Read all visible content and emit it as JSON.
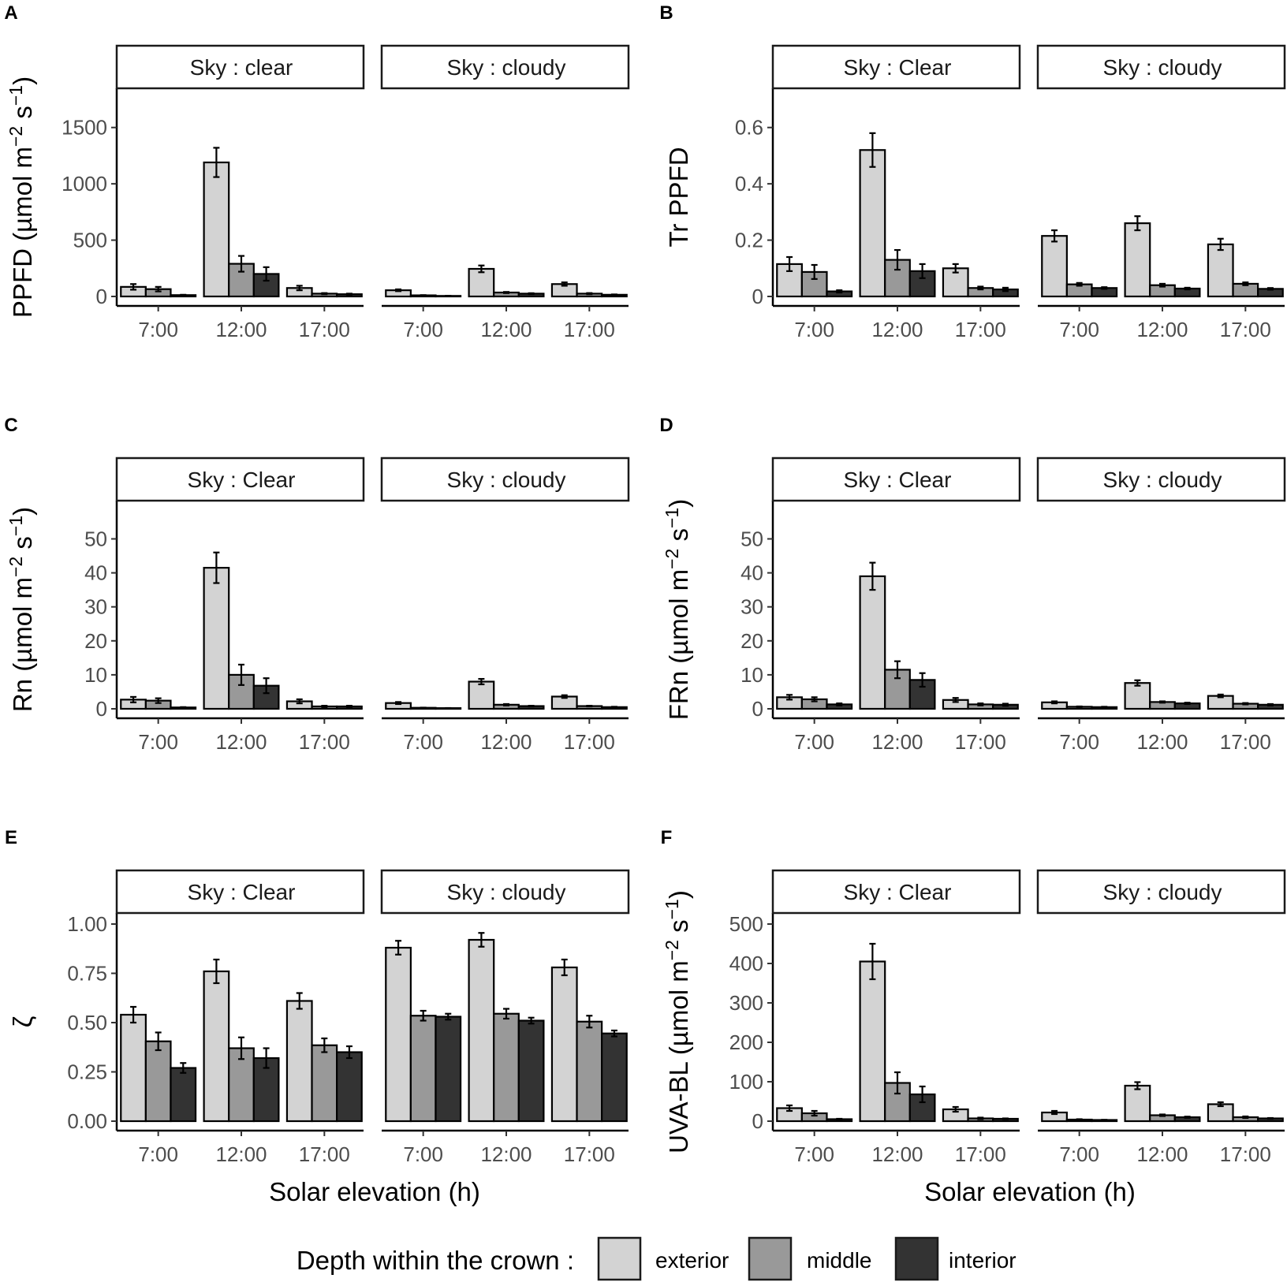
{
  "figure": {
    "x_axis_title": "Solar elevation (h)",
    "legend": {
      "title": "Depth within the crown :",
      "items": [
        {
          "label": "exterior",
          "color": "#d3d3d3"
        },
        {
          "label": "middle",
          "color": "#999999"
        },
        {
          "label": "interior",
          "color": "#333333"
        }
      ]
    }
  },
  "chart_data": [
    {
      "panel": "A",
      "type": "bar",
      "ylabel": "PPFD (µmol m−2 s−1)",
      "ylabel_parts": {
        "prefix": "PPFD (µmol m",
        "sup1": "−2",
        "mid": " s",
        "sup2": "−1",
        "suffix": ")"
      },
      "ylim": [
        0,
        1750
      ],
      "yticks": [
        0,
        500,
        1000,
        1500
      ],
      "categories": [
        "7:00",
        "12:00",
        "17:00"
      ],
      "facets": [
        {
          "label": "Sky : clear",
          "series": [
            {
              "name": "exterior",
              "values": [
                85,
                1190,
                75
              ],
              "errors": [
                25,
                130,
                20
              ]
            },
            {
              "name": "middle",
              "values": [
                65,
                290,
                25
              ],
              "errors": [
                20,
                70,
                5
              ]
            },
            {
              "name": "interior",
              "values": [
                12,
                200,
                20
              ],
              "errors": [
                3,
                60,
                5
              ]
            }
          ]
        },
        {
          "label": "Sky : cloudy",
          "series": [
            {
              "name": "exterior",
              "values": [
                55,
                245,
                110
              ],
              "errors": [
                8,
                30,
                15
              ]
            },
            {
              "name": "middle",
              "values": [
                10,
                35,
                25
              ],
              "errors": [
                2,
                5,
                5
              ]
            },
            {
              "name": "interior",
              "values": [
                5,
                25,
                15
              ],
              "errors": [
                1,
                4,
                3
              ]
            }
          ]
        }
      ]
    },
    {
      "panel": "B",
      "type": "bar",
      "ylabel": "Tr PPFD",
      "ylim": [
        0,
        0.7
      ],
      "yticks": [
        0.0,
        0.2,
        0.4,
        0.6
      ],
      "categories": [
        "7:00",
        "12:00",
        "17:00"
      ],
      "facets": [
        {
          "label": "Sky : Clear",
          "series": [
            {
              "name": "exterior",
              "values": [
                0.115,
                0.52,
                0.1
              ],
              "errors": [
                0.025,
                0.06,
                0.015
              ]
            },
            {
              "name": "middle",
              "values": [
                0.087,
                0.13,
                0.03
              ],
              "errors": [
                0.025,
                0.035,
                0.005
              ]
            },
            {
              "name": "interior",
              "values": [
                0.018,
                0.09,
                0.025
              ],
              "errors": [
                0.004,
                0.025,
                0.006
              ]
            }
          ]
        },
        {
          "label": "Sky : cloudy",
          "series": [
            {
              "name": "exterior",
              "values": [
                0.215,
                0.26,
                0.185
              ],
              "errors": [
                0.02,
                0.025,
                0.02
              ]
            },
            {
              "name": "middle",
              "values": [
                0.043,
                0.04,
                0.045
              ],
              "errors": [
                0.005,
                0.005,
                0.005
              ]
            },
            {
              "name": "interior",
              "values": [
                0.03,
                0.028,
                0.027
              ],
              "errors": [
                0.003,
                0.003,
                0.003
              ]
            }
          ]
        }
      ]
    },
    {
      "panel": "C",
      "type": "bar",
      "ylabel": "Rn (µmol m−2 s−1)",
      "ylabel_parts": {
        "prefix": "Rn (µmol m",
        "sup1": "−2",
        "mid": " s",
        "sup2": "−1",
        "suffix": ")"
      },
      "ylim": [
        0,
        58
      ],
      "yticks": [
        0,
        10,
        20,
        30,
        40,
        50
      ],
      "categories": [
        "7:00",
        "12:00",
        "17:00"
      ],
      "facets": [
        {
          "label": "Sky : Clear",
          "series": [
            {
              "name": "exterior",
              "values": [
                2.7,
                41.5,
                2.2
              ],
              "errors": [
                0.8,
                4.5,
                0.6
              ]
            },
            {
              "name": "middle",
              "values": [
                2.4,
                10.0,
                0.7
              ],
              "errors": [
                0.7,
                3.0,
                0.2
              ]
            },
            {
              "name": "interior",
              "values": [
                0.4,
                6.8,
                0.7
              ],
              "errors": [
                0.1,
                2.2,
                0.2
              ]
            }
          ]
        },
        {
          "label": "Sky : cloudy",
          "series": [
            {
              "name": "exterior",
              "values": [
                1.7,
                8.0,
                3.6
              ],
              "errors": [
                0.3,
                0.8,
                0.4
              ]
            },
            {
              "name": "middle",
              "values": [
                0.3,
                1.2,
                0.8
              ],
              "errors": [
                0.05,
                0.2,
                0.1
              ]
            },
            {
              "name": "interior",
              "values": [
                0.2,
                0.8,
                0.5
              ],
              "errors": [
                0.03,
                0.1,
                0.1
              ]
            }
          ]
        }
      ]
    },
    {
      "panel": "D",
      "type": "bar",
      "ylabel": "FRn (µmol m−2 s−1)",
      "ylabel_parts": {
        "prefix": "FRn (µmol m",
        "sup1": "−2",
        "mid": " s",
        "sup2": "−1",
        "suffix": ")"
      },
      "ylim": [
        0,
        58
      ],
      "yticks": [
        0,
        10,
        20,
        30,
        40,
        50
      ],
      "categories": [
        "7:00",
        "12:00",
        "17:00"
      ],
      "facets": [
        {
          "label": "Sky : Clear",
          "series": [
            {
              "name": "exterior",
              "values": [
                3.4,
                39.0,
                2.6
              ],
              "errors": [
                0.7,
                4.0,
                0.6
              ]
            },
            {
              "name": "middle",
              "values": [
                2.8,
                11.5,
                1.3
              ],
              "errors": [
                0.6,
                2.5,
                0.3
              ]
            },
            {
              "name": "interior",
              "values": [
                1.3,
                8.5,
                1.2
              ],
              "errors": [
                0.3,
                2.0,
                0.3
              ]
            }
          ]
        },
        {
          "label": "Sky : cloudy",
          "series": [
            {
              "name": "exterior",
              "values": [
                1.9,
                7.6,
                3.8
              ],
              "errors": [
                0.3,
                0.8,
                0.4
              ]
            },
            {
              "name": "middle",
              "values": [
                0.6,
                2.0,
                1.5
              ],
              "errors": [
                0.1,
                0.2,
                0.2
              ]
            },
            {
              "name": "interior",
              "values": [
                0.5,
                1.6,
                1.2
              ],
              "errors": [
                0.1,
                0.2,
                0.2
              ]
            }
          ]
        }
      ]
    },
    {
      "panel": "E",
      "type": "bar",
      "ylabel": "ζ",
      "ylim": [
        0,
        1.0
      ],
      "yticks": [
        0.0,
        0.25,
        0.5,
        0.75,
        1.0
      ],
      "ytick_labels": [
        "0.00",
        "0.25",
        "0.50",
        "0.75",
        "1.00"
      ],
      "categories": [
        "7:00",
        "12:00",
        "17:00"
      ],
      "facets": [
        {
          "label": "Sky : Clear",
          "series": [
            {
              "name": "exterior",
              "values": [
                0.54,
                0.76,
                0.61
              ],
              "errors": [
                0.04,
                0.06,
                0.04
              ]
            },
            {
              "name": "middle",
              "values": [
                0.405,
                0.37,
                0.385
              ],
              "errors": [
                0.045,
                0.055,
                0.035
              ]
            },
            {
              "name": "interior",
              "values": [
                0.27,
                0.32,
                0.35
              ],
              "errors": [
                0.025,
                0.05,
                0.03
              ]
            }
          ]
        },
        {
          "label": "Sky : cloudy",
          "series": [
            {
              "name": "exterior",
              "values": [
                0.88,
                0.92,
                0.78
              ],
              "errors": [
                0.035,
                0.035,
                0.04
              ]
            },
            {
              "name": "middle",
              "values": [
                0.535,
                0.545,
                0.505
              ],
              "errors": [
                0.025,
                0.025,
                0.03
              ]
            },
            {
              "name": "interior",
              "values": [
                0.53,
                0.51,
                0.445
              ],
              "errors": [
                0.015,
                0.015,
                0.015
              ]
            }
          ]
        }
      ]
    },
    {
      "panel": "F",
      "type": "bar",
      "ylabel": "UVA-BL (µmol m−2 s−1)",
      "ylabel_parts": {
        "prefix": "UVA-BL (µmol m",
        "sup1": "−2",
        "mid": " s",
        "sup2": "−1",
        "suffix": ")"
      },
      "ylim": [
        0,
        500
      ],
      "yticks": [
        0,
        100,
        200,
        300,
        400,
        500
      ],
      "categories": [
        "7:00",
        "12:00",
        "17:00"
      ],
      "facets": [
        {
          "label": "Sky : Clear",
          "series": [
            {
              "name": "exterior",
              "values": [
                33,
                405,
                30
              ],
              "errors": [
                7,
                45,
                6
              ]
            },
            {
              "name": "middle",
              "values": [
                20,
                97,
                7
              ],
              "errors": [
                6,
                27,
                2
              ]
            },
            {
              "name": "interior",
              "values": [
                5,
                68,
                6
              ],
              "errors": [
                1,
                20,
                1
              ]
            }
          ]
        },
        {
          "label": "Sky : cloudy",
          "series": [
            {
              "name": "exterior",
              "values": [
                22,
                90,
                43
              ],
              "errors": [
                4,
                9,
                5
              ]
            },
            {
              "name": "middle",
              "values": [
                4,
                15,
                10
              ],
              "errors": [
                1,
                2,
                2
              ]
            },
            {
              "name": "interior",
              "values": [
                3,
                10,
                7
              ],
              "errors": [
                0.5,
                1.5,
                1
              ]
            }
          ]
        }
      ]
    }
  ]
}
